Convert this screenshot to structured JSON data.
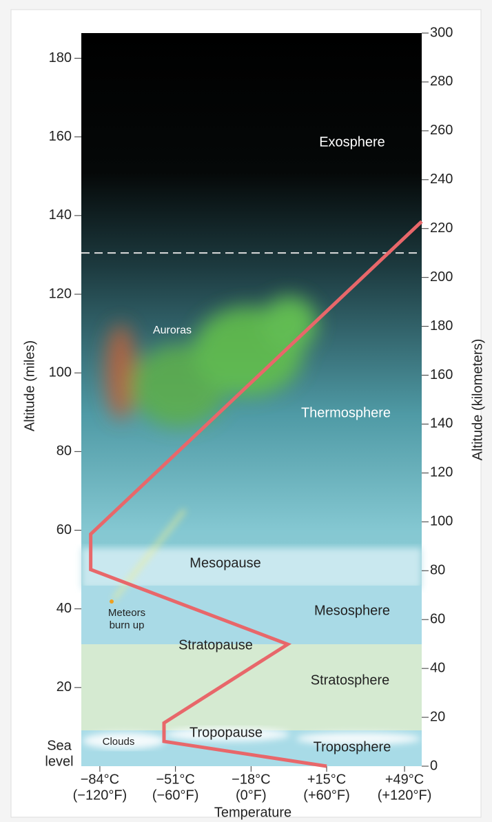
{
  "chart_data": {
    "type": "line",
    "y_title": "Altitude (miles)",
    "y2_title": "Altitude (kilometers)",
    "x_title": "Temperature",
    "xlim": [
      -92.1,
      56.5
    ],
    "xticks": [
      {
        "value": -84,
        "label": "−84°C"
      },
      {
        "value": -51,
        "label": "−51°C"
      },
      {
        "value": -18,
        "label": "−18°C"
      },
      {
        "value": 15,
        "label": "+15°C"
      },
      {
        "value": 49,
        "label": "+49°C"
      }
    ],
    "xtick_sublabels": [
      "(−120°F)",
      "(−60°F)",
      "(0°F)",
      "(+60°F)",
      "(+120°F)"
    ],
    "ylim": [
      0,
      186.4
    ],
    "yticks": [
      20,
      40,
      60,
      80,
      100,
      120,
      140,
      160,
      180
    ],
    "y2lim": [
      0,
      300
    ],
    "y2ticks": [
      0,
      20,
      40,
      60,
      80,
      100,
      120,
      140,
      160,
      180,
      200,
      220,
      240,
      260,
      280,
      300
    ],
    "sea_level_label": [
      "Sea",
      "level"
    ],
    "series": [
      {
        "color": "#e8676a",
        "x": [
          15,
          -56,
          -56,
          -2,
          -88,
          -88,
          56.5
        ],
        "values": [
          0,
          6.3,
          11,
          31,
          50,
          59,
          138.5
        ]
      }
    ],
    "hline": {
      "value": 130.5,
      "color": "#dddddd",
      "dashed": true
    },
    "annotations": [
      "Exosphere",
      "Auroras",
      "Thermosphere",
      "Mesopause",
      "Mesosphere",
      "Stratopause",
      "Stratosphere",
      "Tropopause",
      "Clouds",
      "Troposphere"
    ],
    "meteor_label": [
      "Meteors",
      "burn up"
    ]
  }
}
